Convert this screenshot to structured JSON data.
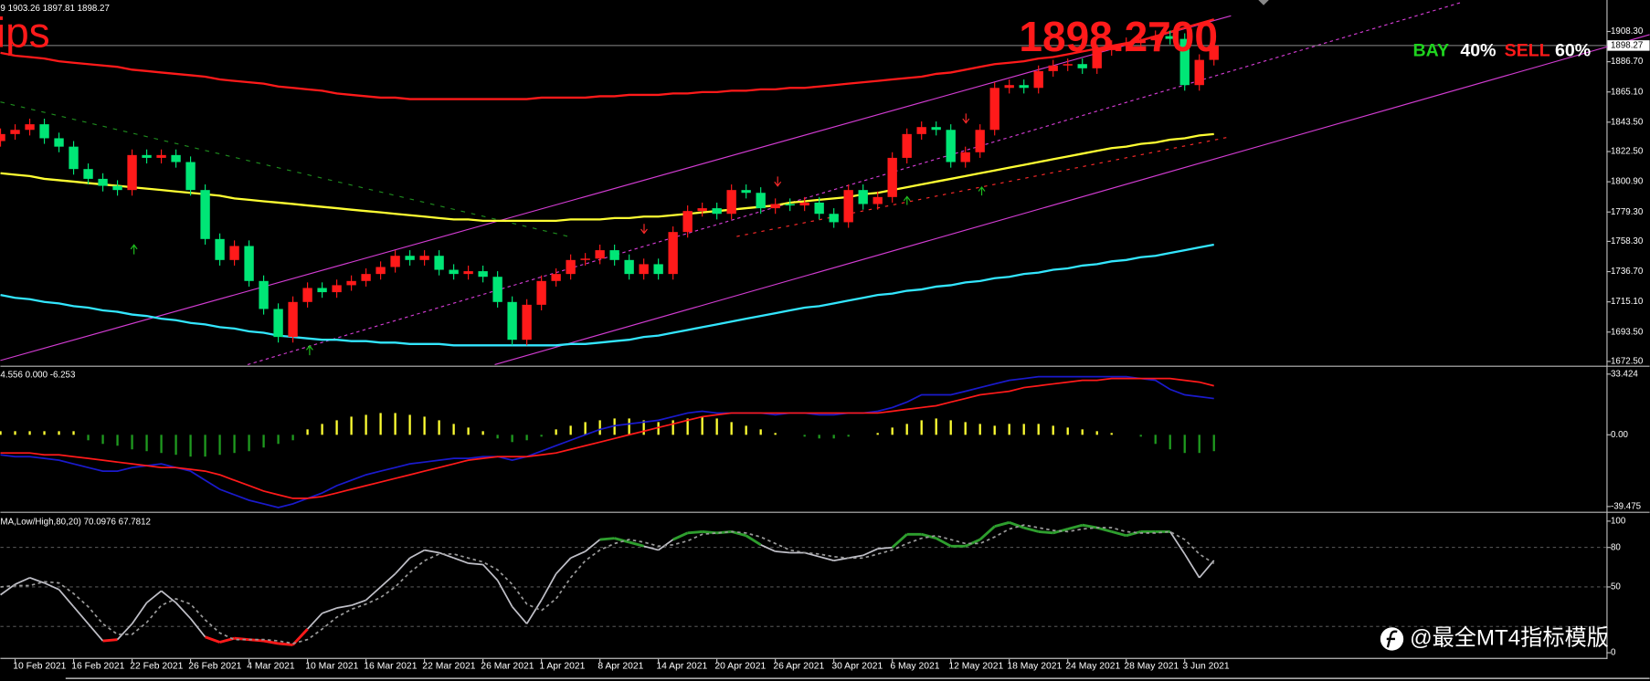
{
  "chart_data": [
    {
      "type": "candlestick",
      "info": "9 1903.26 1897.81 1898.27",
      "big_label": "ips",
      "price_text": "1898.2700",
      "last_price": 1898.27,
      "up_color": "#ff1a1a",
      "down_color": "#00e676",
      "categories": [
        null,
        "10 Feb 2021",
        null,
        null,
        null,
        "16 Feb 2021",
        null,
        null,
        null,
        "22 Feb 2021",
        null,
        null,
        null,
        "26 Feb 2021",
        null,
        null,
        null,
        "4 Mar 2021",
        null,
        null,
        null,
        "10 Mar 2021",
        null,
        null,
        null,
        "16 Mar 2021",
        null,
        null,
        null,
        "22 Mar 2021",
        null,
        null,
        null,
        "26 Mar 2021",
        null,
        null,
        null,
        "1 Apr 2021",
        null,
        null,
        null,
        "8 Apr 2021",
        null,
        null,
        null,
        "14 Apr 2021",
        null,
        null,
        null,
        "20 Apr 2021",
        null,
        null,
        null,
        "26 Apr 2021",
        null,
        null,
        null,
        "30 Apr 2021",
        null,
        null,
        null,
        "6 May 2021",
        null,
        null,
        null,
        "12 May 2021",
        null,
        null,
        null,
        "18 May 2021",
        null,
        null,
        null,
        "24 May 2021",
        null,
        null,
        null,
        "28 May 2021",
        null,
        null,
        null,
        "3 Jun 2021",
        null,
        null
      ],
      "open": [
        1830,
        1835,
        1838,
        1842,
        1832,
        1826,
        1810,
        1803,
        1798,
        1795,
        1820,
        1818,
        1820,
        1815,
        1795,
        1760,
        1745,
        1755,
        1730,
        1710,
        1690,
        1715,
        1725,
        1722,
        1727,
        1730,
        1735,
        1740,
        1748,
        1745,
        1748,
        1738,
        1735,
        1737,
        1733,
        1715,
        1688,
        1713,
        1730,
        1735,
        1745,
        1746,
        1752,
        1745,
        1735,
        1742,
        1735,
        1765,
        1780,
        1782,
        1778,
        1795,
        1793,
        1782,
        1785,
        1784,
        1786,
        1778,
        1772,
        1795,
        1785,
        1790,
        1818,
        1835,
        1840,
        1838,
        1815,
        1822,
        1838,
        1868,
        1870,
        1868,
        1880,
        1884,
        1885,
        1882,
        1895,
        1898,
        1900,
        1902,
        1905,
        1903,
        1870,
        1888
      ],
      "high": [
        1839,
        1842,
        1846,
        1846,
        1836,
        1830,
        1814,
        1807,
        1802,
        1824,
        1824,
        1824,
        1824,
        1819,
        1799,
        1764,
        1759,
        1759,
        1734,
        1714,
        1719,
        1729,
        1729,
        1731,
        1734,
        1739,
        1744,
        1752,
        1752,
        1752,
        1752,
        1742,
        1741,
        1741,
        1737,
        1719,
        1717,
        1734,
        1739,
        1749,
        1750,
        1756,
        1756,
        1749,
        1746,
        1746,
        1769,
        1784,
        1786,
        1786,
        1799,
        1799,
        1797,
        1789,
        1789,
        1790,
        1790,
        1782,
        1799,
        1799,
        1794,
        1822,
        1839,
        1844,
        1844,
        1842,
        1826,
        1842,
        1872,
        1874,
        1874,
        1884,
        1888,
        1889,
        1889,
        1899,
        1902,
        1904,
        1906,
        1909,
        1909,
        1907,
        1892,
        1903.26
      ],
      "low": [
        1826,
        1831,
        1834,
        1828,
        1822,
        1806,
        1799,
        1794,
        1791,
        1791,
        1814,
        1814,
        1811,
        1791,
        1756,
        1741,
        1741,
        1726,
        1706,
        1686,
        1686,
        1711,
        1718,
        1718,
        1723,
        1726,
        1731,
        1736,
        1741,
        1741,
        1734,
        1731,
        1731,
        1729,
        1711,
        1684,
        1684,
        1709,
        1726,
        1731,
        1741,
        1742,
        1741,
        1731,
        1731,
        1731,
        1731,
        1761,
        1776,
        1774,
        1774,
        1789,
        1778,
        1778,
        1780,
        1780,
        1774,
        1768,
        1768,
        1781,
        1781,
        1786,
        1814,
        1831,
        1834,
        1811,
        1811,
        1818,
        1834,
        1864,
        1864,
        1864,
        1876,
        1880,
        1878,
        1878,
        1891,
        1894,
        1896,
        1898,
        1899,
        1866,
        1866,
        1884
      ],
      "close": [
        1835,
        1838,
        1842,
        1832,
        1826,
        1810,
        1803,
        1798,
        1795,
        1820,
        1818,
        1820,
        1815,
        1795,
        1760,
        1745,
        1755,
        1730,
        1710,
        1690,
        1715,
        1725,
        1722,
        1727,
        1730,
        1735,
        1740,
        1748,
        1745,
        1748,
        1738,
        1735,
        1737,
        1733,
        1715,
        1688,
        1713,
        1730,
        1735,
        1745,
        1746,
        1752,
        1745,
        1735,
        1742,
        1735,
        1765,
        1780,
        1782,
        1778,
        1795,
        1793,
        1782,
        1785,
        1784,
        1786,
        1778,
        1772,
        1795,
        1785,
        1790,
        1818,
        1835,
        1840,
        1838,
        1815,
        1822,
        1838,
        1868,
        1870,
        1868,
        1880,
        1884,
        1885,
        1882,
        1895,
        1898,
        1900,
        1902,
        1905,
        1903,
        1870,
        1888,
        1898.27
      ],
      "series": [
        {
          "color": "#ff1a1a",
          "values": [
            1893,
            1891,
            1890,
            1889,
            1887,
            1886,
            1885,
            1884,
            1883,
            1881,
            1880,
            1879,
            1878,
            1877,
            1876,
            1874,
            1873,
            1872,
            1871,
            1869,
            1868,
            1867,
            1866,
            1864,
            1863,
            1862,
            1861,
            1861,
            1860,
            1860,
            1860,
            1860,
            1860,
            1860,
            1860,
            1860,
            1860,
            1861,
            1861,
            1861,
            1861,
            1862,
            1862,
            1863,
            1863,
            1863,
            1864,
            1864,
            1865,
            1865,
            1866,
            1866,
            1867,
            1867,
            1868,
            1868,
            1869,
            1870,
            1871,
            1872,
            1873,
            1874,
            1875,
            1876,
            1878,
            1879,
            1881,
            1883,
            1885,
            1886,
            1887,
            1889,
            1890,
            1892,
            1894,
            1896,
            1898,
            1900,
            1902,
            1905,
            1908,
            1911,
            1914,
            1917
          ]
        },
        {
          "color": "#ffff33",
          "values": [
            1807,
            1806,
            1805,
            1803,
            1802,
            1801,
            1800,
            1799,
            1798,
            1797,
            1796,
            1795,
            1794,
            1793,
            1792,
            1791,
            1789,
            1788,
            1787,
            1786,
            1785,
            1784,
            1783,
            1782,
            1781,
            1780,
            1779,
            1778,
            1777,
            1776,
            1775,
            1774,
            1774,
            1773,
            1773,
            1773,
            1773,
            1773,
            1773,
            1774,
            1774,
            1774,
            1775,
            1775,
            1776,
            1776,
            1777,
            1778,
            1779,
            1780,
            1781,
            1782,
            1783,
            1784,
            1786,
            1787,
            1788,
            1789,
            1790,
            1792,
            1793,
            1795,
            1797,
            1799,
            1801,
            1803,
            1805,
            1807,
            1809,
            1811,
            1813,
            1815,
            1817,
            1819,
            1821,
            1823,
            1825,
            1826,
            1828,
            1829,
            1831,
            1832,
            1834,
            1835
          ]
        },
        {
          "color": "#33e6ff",
          "values": [
            1720,
            1718,
            1717,
            1715,
            1714,
            1712,
            1711,
            1709,
            1708,
            1706,
            1705,
            1703,
            1702,
            1700,
            1699,
            1697,
            1696,
            1694,
            1693,
            1691,
            1690,
            1689,
            1688,
            1688,
            1687,
            1687,
            1686,
            1686,
            1685,
            1685,
            1685,
            1684,
            1684,
            1684,
            1684,
            1684,
            1684,
            1684,
            1684,
            1685,
            1685,
            1686,
            1687,
            1688,
            1690,
            1691,
            1693,
            1695,
            1697,
            1699,
            1701,
            1703,
            1705,
            1707,
            1709,
            1711,
            1712,
            1714,
            1716,
            1718,
            1720,
            1721,
            1723,
            1724,
            1726,
            1727,
            1729,
            1730,
            1732,
            1733,
            1735,
            1736,
            1738,
            1739,
            1741,
            1742,
            1744,
            1745,
            1747,
            1748,
            1750,
            1752,
            1754,
            1756
          ]
        }
      ],
      "ylim": [
        1670.2,
        1929.3
      ],
      "yticks": [
        {
          "value": 1908.3,
          "label": "1908.30"
        },
        {
          "value": 1886.7,
          "label": "1886.70"
        },
        {
          "value": 1865.1,
          "label": "1865.10"
        },
        {
          "value": 1843.5,
          "label": "1843.50"
        },
        {
          "value": 1822.5,
          "label": "1822.50"
        },
        {
          "value": 1800.9,
          "label": "1800.90"
        },
        {
          "value": 1779.3,
          "label": "1779.30"
        },
        {
          "value": 1758.3,
          "label": "1758.30"
        },
        {
          "value": 1736.7,
          "label": "1736.70"
        },
        {
          "value": 1715.1,
          "label": "1715.10"
        },
        {
          "value": 1693.5,
          "label": "1693.50"
        },
        {
          "value": 1672.5,
          "label": "1672.50"
        }
      ]
    },
    {
      "type": "macd",
      "info": "4.556 0.000 -6.253",
      "pos_color": "#ffff33",
      "neg_color": "#1f9a1f",
      "values": [
        2,
        2,
        2,
        2,
        2,
        2,
        -3,
        -5,
        -6,
        -8,
        -9,
        -10,
        -11,
        -12,
        -12,
        -11,
        -10,
        -9,
        -7,
        -5,
        -3,
        3,
        6,
        8,
        10,
        11,
        12,
        12,
        11,
        10,
        8,
        6,
        4,
        2,
        -2,
        -4,
        -3,
        -1,
        3,
        5,
        7,
        8,
        9,
        9,
        8,
        7,
        8,
        9,
        10,
        9,
        7,
        5,
        3,
        1,
        0,
        -1,
        -2,
        -2,
        -1,
        0,
        1,
        4,
        6,
        8,
        9,
        8,
        7,
        6,
        5,
        6,
        6,
        6,
        5,
        4,
        3,
        2,
        1,
        0,
        -1,
        -5,
        -8,
        -10,
        -10,
        -9
      ],
      "series": [
        {
          "color": "#1a1acc",
          "values": [
            -11,
            -12,
            -12,
            -13,
            -14,
            -16,
            -18,
            -20,
            -20,
            -18,
            -17,
            -16,
            -18,
            -20,
            -25,
            -30,
            -33,
            -36,
            -38,
            -40,
            -38,
            -35,
            -32,
            -28,
            -25,
            -22,
            -20,
            -18,
            -16,
            -15,
            -14,
            -13,
            -13,
            -12,
            -12,
            -14,
            -12,
            -9,
            -6,
            -3,
            0,
            3,
            5,
            6,
            7,
            8,
            10,
            12,
            13,
            12,
            12,
            12,
            12,
            11,
            12,
            12,
            11,
            11,
            12,
            12,
            13,
            15,
            18,
            22,
            22,
            22,
            24,
            26,
            28,
            30,
            31,
            32,
            32,
            32,
            32,
            32,
            32,
            32,
            31,
            30,
            25,
            22,
            21,
            20
          ]
        },
        {
          "color": "#ff1a1a",
          "values": [
            -10,
            -10,
            -10,
            -11,
            -11,
            -12,
            -13,
            -14,
            -15,
            -16,
            -17,
            -18,
            -18,
            -19,
            -20,
            -22,
            -25,
            -28,
            -31,
            -33,
            -35,
            -35,
            -34,
            -32,
            -30,
            -28,
            -26,
            -24,
            -22,
            -20,
            -18,
            -16,
            -14,
            -13,
            -12,
            -12,
            -12,
            -11,
            -10,
            -8,
            -6,
            -4,
            -2,
            0,
            2,
            4,
            6,
            8,
            10,
            11,
            12,
            12,
            12,
            12,
            12,
            12,
            12,
            12,
            12,
            12,
            12,
            13,
            14,
            15,
            16,
            18,
            20,
            22,
            23,
            24,
            26,
            27,
            28,
            29,
            30,
            30,
            31,
            31,
            31,
            31,
            31,
            30,
            29,
            27
          ]
        }
      ],
      "ylim": [
        -41.8,
        36.3
      ],
      "yticks": [
        33.424,
        {
          "value": 0,
          "label": "0.00"
        },
        -39.475
      ]
    },
    {
      "type": "stochastic",
      "info": "MA,Low/High,80,20) 70.0976 67.7812",
      "high_color": "#2e9e2e",
      "low_color": "#ff1a1a",
      "series": [
        {
          "color": "#c0c0c8",
          "values": [
            44,
            52,
            57,
            53,
            48,
            35,
            22,
            9,
            10,
            22,
            38,
            47,
            38,
            26,
            12,
            8,
            11,
            10,
            9,
            7,
            6,
            18,
            30,
            34,
            36,
            40,
            50,
            60,
            72,
            78,
            76,
            72,
            68,
            67,
            55,
            35,
            22,
            40,
            60,
            72,
            77,
            86,
            87,
            84,
            81,
            78,
            86,
            91,
            92,
            91,
            92,
            89,
            82,
            77,
            76,
            76,
            73,
            70,
            72,
            74,
            79,
            80,
            90,
            90,
            87,
            81,
            81,
            86,
            96,
            99,
            95,
            92,
            91,
            94,
            97,
            95,
            92,
            89,
            92,
            92,
            92,
            75,
            57,
            70.0976
          ]
        },
        {
          "color": "#9a9a9a",
          "dashed": true,
          "values": [
            50,
            51,
            51,
            54,
            53,
            45,
            35,
            22,
            14,
            14,
            23,
            36,
            41,
            37,
            25,
            15,
            10,
            10,
            10,
            9,
            7,
            10,
            18,
            27,
            33,
            37,
            42,
            50,
            61,
            70,
            75,
            75,
            72,
            69,
            63,
            52,
            37,
            32,
            41,
            57,
            70,
            78,
            83,
            86,
            84,
            81,
            82,
            85,
            90,
            91,
            92,
            91,
            88,
            83,
            78,
            76,
            75,
            73,
            72,
            72,
            75,
            78,
            83,
            87,
            89,
            86,
            83,
            83,
            88,
            94,
            97,
            95,
            93,
            92,
            94,
            95,
            95,
            92,
            91,
            91,
            92,
            86,
            75,
            67.7812
          ]
        }
      ],
      "levels": [
        80,
        50,
        20
      ],
      "ylim": [
        -3.9,
        104.7
      ],
      "yticks": [
        100,
        80,
        50,
        0
      ]
    }
  ],
  "overlay": {
    "buy": "BAY",
    "buy_pct": "40%",
    "sell": "SELL",
    "sell_pct": "60%",
    "watermark": "@最全MT4指标模版"
  }
}
